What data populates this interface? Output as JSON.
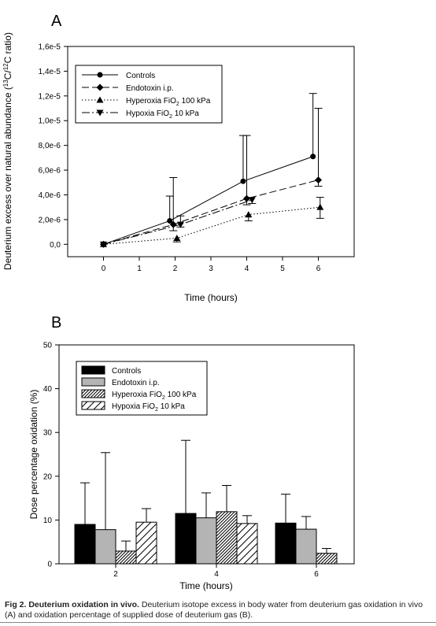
{
  "chart_data": [
    {
      "panel": "A",
      "type": "line",
      "xlabel": "Time (hours)",
      "ylabel_parts": [
        "Deuterium excess over natural abundance (",
        "13",
        "C/",
        "12",
        "C ratio)"
      ],
      "xlim": [
        -1,
        7
      ],
      "ylim": [
        -1e-06,
        1.6e-05
      ],
      "xticks": [
        "0",
        "1",
        "2",
        "3",
        "4",
        "5",
        "6"
      ],
      "xtick_values": [
        0,
        1,
        2,
        3,
        4,
        5,
        6
      ],
      "yticks": [
        "0,0",
        "2,0e-6",
        "4,0e-6",
        "6,0e-6",
        "8,0e-6",
        "1,0e-5",
        "1,2e-5",
        "1,4e-5",
        "1,6e-5"
      ],
      "ytick_values": [
        0,
        2e-06,
        4e-06,
        6e-06,
        8e-06,
        1e-05,
        1.2e-05,
        1.4e-05,
        1.6e-05
      ],
      "series": [
        {
          "name_parts": [
            "Controls",
            "",
            ""
          ],
          "marker": "circle",
          "dash": "solid",
          "x": [
            0,
            1.85,
            3.9,
            5.85
          ],
          "y": [
            0,
            1.9e-06,
            5.1e-06,
            7.1e-06
          ],
          "err_up": [
            0,
            2e-06,
            3.7e-06,
            5.1e-06
          ],
          "err_down": [
            0,
            0,
            0,
            0
          ]
        },
        {
          "name_parts": [
            "Endotoxin i.p.",
            "",
            ""
          ],
          "marker": "diamond",
          "dash": "dash",
          "x": [
            0,
            1.95,
            4.0,
            6.0
          ],
          "y": [
            0,
            1.6e-06,
            3.7e-06,
            5.2e-06
          ],
          "err_up": [
            0,
            3.8e-06,
            5.1e-06,
            5.8e-06
          ],
          "err_down": [
            0,
            5e-07,
            5e-07,
            5e-07
          ]
        },
        {
          "name_parts": [
            "Hyperoxia FiO",
            "2",
            " 100 kPa"
          ],
          "marker": "triangle-up",
          "dash": "dot",
          "x": [
            0,
            2.05,
            4.05,
            6.05
          ],
          "y": [
            0,
            5e-07,
            2.4e-06,
            3e-06
          ],
          "err_up": [
            0,
            0,
            0,
            8e-07
          ],
          "err_down": [
            0,
            3e-07,
            5e-07,
            9e-07
          ]
        },
        {
          "name_parts": [
            "Hypoxia FiO",
            "2",
            " 10 kPa"
          ],
          "marker": "triangle-down",
          "dash": "dashdot",
          "x": [
            0,
            2.15,
            4.15
          ],
          "y": [
            0,
            1.6e-06,
            3.6e-06
          ],
          "err_up": [
            0,
            7e-07,
            0
          ],
          "err_down": [
            0,
            2e-07,
            3e-07
          ]
        }
      ]
    },
    {
      "panel": "B",
      "type": "bar",
      "xlabel": "Time (hours)",
      "ylabel": "Dose percentage oxidation (%)",
      "ylim": [
        0,
        50
      ],
      "categories": [
        "2",
        "4",
        "6"
      ],
      "yticks": [
        "0",
        "10",
        "20",
        "30",
        "40",
        "50"
      ],
      "ytick_values": [
        0,
        10,
        20,
        30,
        40,
        50
      ],
      "series": [
        {
          "name_parts": [
            "Controls",
            "",
            ""
          ],
          "fill": "#000000",
          "pattern": "solid",
          "values": [
            9.0,
            11.5,
            9.3
          ],
          "err_up": [
            18.5,
            28.2,
            15.9
          ]
        },
        {
          "name_parts": [
            "Endotoxin i.p.",
            "",
            ""
          ],
          "fill": "#b4b4b4",
          "pattern": "solid",
          "values": [
            7.8,
            10.5,
            7.9
          ],
          "err_up": [
            25.4,
            16.2,
            10.8
          ]
        },
        {
          "name_parts": [
            "Hyperoxia FiO",
            "2",
            " 100 kPa"
          ],
          "fill": "#ffffff",
          "pattern": "dense-hatch",
          "values": [
            2.9,
            11.9,
            2.4
          ],
          "err_up": [
            5.2,
            17.9,
            3.5
          ]
        },
        {
          "name_parts": [
            "Hypoxia FiO",
            "2",
            " 10 kPa"
          ],
          "fill": "#ffffff",
          "pattern": "wide-hatch",
          "values": [
            9.5,
            9.2,
            null
          ],
          "err_up": [
            12.6,
            11.0,
            null
          ]
        }
      ]
    }
  ],
  "caption": {
    "label": "Fig 2. Deuterium oxidation in vivo.",
    "text": " Deuterium isotope excess in body water from deuterium gas oxidation in vivo (A) and oxidation percentage of supplied dose of deuterium gas (B)."
  }
}
